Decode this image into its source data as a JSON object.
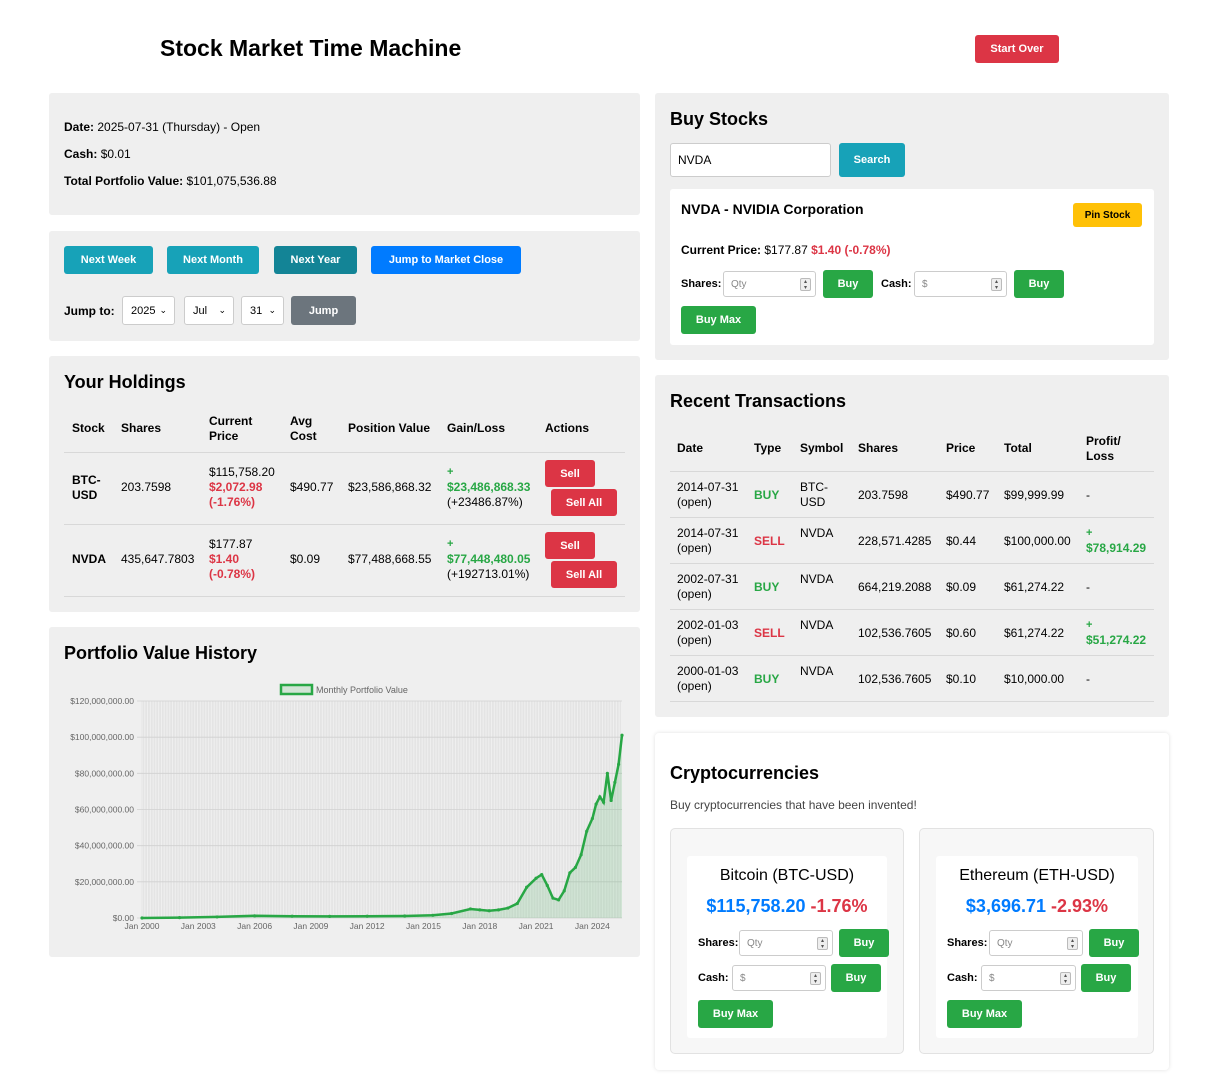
{
  "header": {
    "title": "Stock Market Time Machine",
    "start_over": "Start Over"
  },
  "status": {
    "date_label": "Date:",
    "date_value": "2025-07-31 (Thursday) - Open",
    "cash_label": "Cash:",
    "cash_value": "$0.01",
    "total_label": "Total Portfolio Value:",
    "total_value": "$101,075,536.88"
  },
  "controls": {
    "next_week": "Next Week",
    "next_month": "Next Month",
    "next_year": "Next Year",
    "jump_close": "Jump to Market Close",
    "jump_to_label": "Jump to:",
    "year": "2025",
    "month": "Jul",
    "day": "31",
    "jump": "Jump"
  },
  "holdings": {
    "title": "Your Holdings",
    "headers": [
      "Stock",
      "Shares",
      "Current Price",
      "Avg Cost",
      "Position Value",
      "Gain/Loss",
      "Actions"
    ],
    "rows": [
      {
        "stock": "BTC-USD",
        "shares": "203.7598",
        "price": "$115,758.20",
        "change": "$2,072.98",
        "change_pct": "(-1.76%)",
        "avg": "$490.77",
        "value": "$23,586,868.32",
        "gain_sign": "+",
        "gain": "$23,486,868.33",
        "gain_pct": "(+23486.87%)",
        "sell": "Sell",
        "sell_all": "Sell All"
      },
      {
        "stock": "NVDA",
        "shares": "435,647.7803",
        "price": "$177.87",
        "change": "$1.40",
        "change_pct": "(-0.78%)",
        "avg": "$0.09",
        "value": "$77,488,668.55",
        "gain_sign": "+",
        "gain": "$77,448,480.05",
        "gain_pct": "(+192713.01%)",
        "sell": "Sell",
        "sell_all": "Sell All"
      }
    ]
  },
  "history": {
    "title": "Portfolio Value History"
  },
  "chart_data": {
    "type": "line",
    "legend": "Monthly Portfolio Value",
    "ylim": [
      0,
      120000000
    ],
    "y_ticks": [
      "$120,000,000.00",
      "$100,000,000.00",
      "$80,000,000.00",
      "$60,000,000.00",
      "$40,000,000.00",
      "$20,000,000.00",
      "$0.00"
    ],
    "x_ticks": [
      "Jan 2000",
      "Jan 2003",
      "Jan 2006",
      "Jan 2009",
      "Jan 2012",
      "Jan 2015",
      "Jan 2018",
      "Jan 2021",
      "Jan 2024"
    ],
    "x": [
      2000.0,
      2002.0,
      2004.0,
      2006.0,
      2008.0,
      2010.0,
      2012.0,
      2014.0,
      2015.5,
      2016.5,
      2017.5,
      2018.0,
      2018.5,
      2019.0,
      2019.5,
      2020.0,
      2020.5,
      2021.0,
      2021.3,
      2021.6,
      2021.9,
      2022.2,
      2022.5,
      2022.8,
      2023.1,
      2023.4,
      2023.7,
      2024.0,
      2024.2,
      2024.4,
      2024.6,
      2024.8,
      2025.0,
      2025.2,
      2025.4,
      2025.58
    ],
    "values": [
      10000,
      200000,
      600000,
      1200000,
      1000000,
      900000,
      1000000,
      1100000,
      1500000,
      2500000,
      5000000,
      4500000,
      4000000,
      4500000,
      5500000,
      8000000,
      17000000,
      22000000,
      24000000,
      18000000,
      11000000,
      10000000,
      15000000,
      25000000,
      28000000,
      35000000,
      48000000,
      55000000,
      63000000,
      67000000,
      64000000,
      80000000,
      65000000,
      75000000,
      85000000,
      101075536.88
    ]
  },
  "buy": {
    "title": "Buy Stocks",
    "search_value": "NVDA",
    "search_btn": "Search",
    "stock_name": "NVDA - NVIDIA Corporation",
    "pin": "Pin Stock",
    "price_label": "Current Price:",
    "price": "$177.87",
    "change": "$1.40 (-0.78%)",
    "shares_label": "Shares:",
    "qty_placeholder": "Qty",
    "buy": "Buy",
    "cash_label": "Cash:",
    "cash_placeholder": "$",
    "buy_max": "Buy Max"
  },
  "transactions": {
    "title": "Recent Transactions",
    "headers": [
      "Date",
      "Type",
      "Symbol",
      "Shares",
      "Price",
      "Total",
      "Profit/ Loss"
    ],
    "rows": [
      {
        "date": "2014-07-31",
        "session": "(open)",
        "type": "BUY",
        "symbol": "BTC-USD",
        "shares": "203.7598",
        "price": "$490.77",
        "total": "$99,999.99",
        "pl": "-",
        "pl_sign": ""
      },
      {
        "date": "2014-07-31",
        "session": "(open)",
        "type": "SELL",
        "symbol": "NVDA",
        "shares": "228,571.4285",
        "price": "$0.44",
        "total": "$100,000.00",
        "pl": "$78,914.29",
        "pl_sign": "+"
      },
      {
        "date": "2002-07-31",
        "session": "(open)",
        "type": "BUY",
        "symbol": "NVDA",
        "shares": "664,219.2088",
        "price": "$0.09",
        "total": "$61,274.22",
        "pl": "-",
        "pl_sign": ""
      },
      {
        "date": "2002-01-03",
        "session": "(open)",
        "type": "SELL",
        "symbol": "NVDA",
        "shares": "102,536.7605",
        "price": "$0.60",
        "total": "$61,274.22",
        "pl": "$51,274.22",
        "pl_sign": "+"
      },
      {
        "date": "2000-01-03",
        "session": "(open)",
        "type": "BUY",
        "symbol": "NVDA",
        "shares": "102,536.7605",
        "price": "$0.10",
        "total": "$10,000.00",
        "pl": "-",
        "pl_sign": ""
      }
    ]
  },
  "crypto": {
    "title": "Cryptocurrencies",
    "subtitle": "Buy cryptocurrencies that have been invented!",
    "coins": [
      {
        "name": "Bitcoin (BTC-USD)",
        "price": "$115,758.20",
        "change": "-1.76%"
      },
      {
        "name": "Ethereum (ETH-USD)",
        "price": "$3,696.71",
        "change": "-2.93%"
      }
    ],
    "shares_label": "Shares:",
    "cash_label": "Cash:",
    "qty_placeholder": "Qty",
    "cash_placeholder": "$",
    "buy": "Buy",
    "buy_max": "Buy Max"
  },
  "colors": {
    "green": "#28a745",
    "red": "#dc3545",
    "blue": "#007bff",
    "teal": "#17a2b8",
    "yellow": "#ffc107"
  }
}
